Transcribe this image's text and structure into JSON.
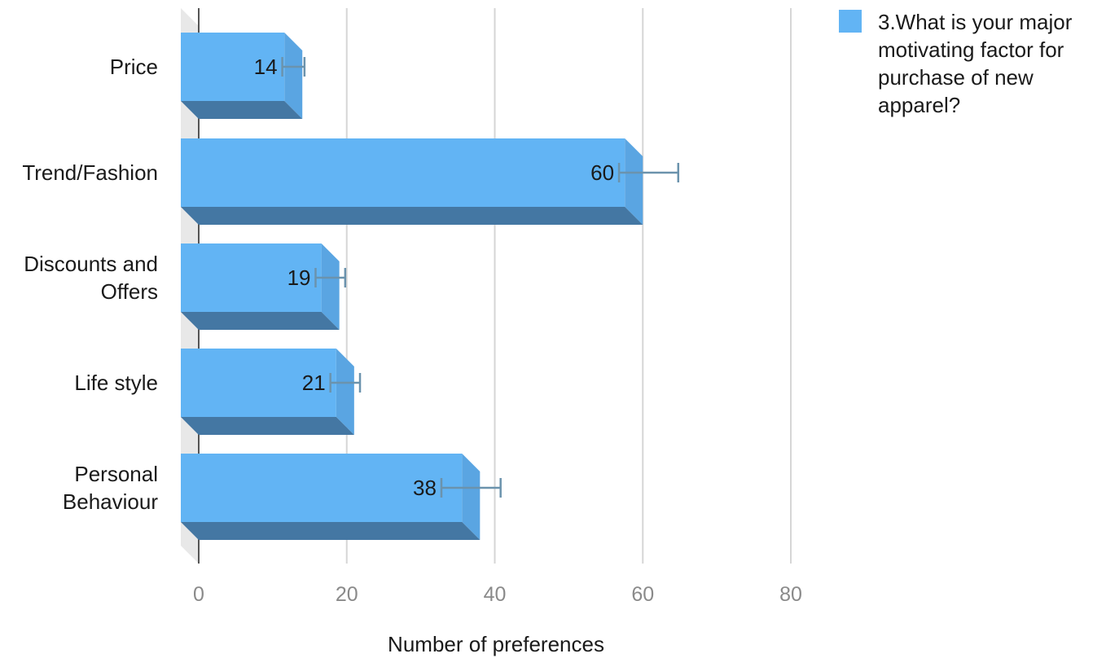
{
  "chart_data": {
    "type": "bar",
    "orientation": "horizontal",
    "categories": [
      [
        "Price"
      ],
      [
        "Trend/Fashion"
      ],
      [
        "Discounts and",
        "Offers"
      ],
      [
        "Life style"
      ],
      [
        "Personal",
        "Behaviour"
      ]
    ],
    "values": [
      14,
      60,
      19,
      21,
      38
    ],
    "error_upper": [
      15.5,
      66,
      21,
      23,
      42
    ],
    "error_lower": [
      12.5,
      58,
      17,
      19,
      34
    ],
    "data_labels": [
      "14",
      "60",
      "19",
      "21",
      "38"
    ],
    "xlabel": "Number of preferences",
    "ylabel": "",
    "xlim": [
      0,
      80
    ],
    "xticks": [
      0,
      20,
      40,
      60,
      80
    ],
    "xtick_labels": [
      "0",
      "20",
      "40",
      "60",
      "80"
    ],
    "grid": "vertical",
    "legend": {
      "position": "top-right",
      "lines": [
        "3.What is your major",
        "motivating factor for",
        "purchase of new",
        "apparel?"
      ]
    },
    "colors": {
      "bar_front": "#62b4f4",
      "bar_side": "#5aa5e2",
      "bar_bottom": "#4477a3",
      "error_bar": "#6b93ad",
      "grid": "#d6d6d6",
      "wall": "#e8e8e8",
      "legend_swatch": "#62b4f4"
    }
  }
}
